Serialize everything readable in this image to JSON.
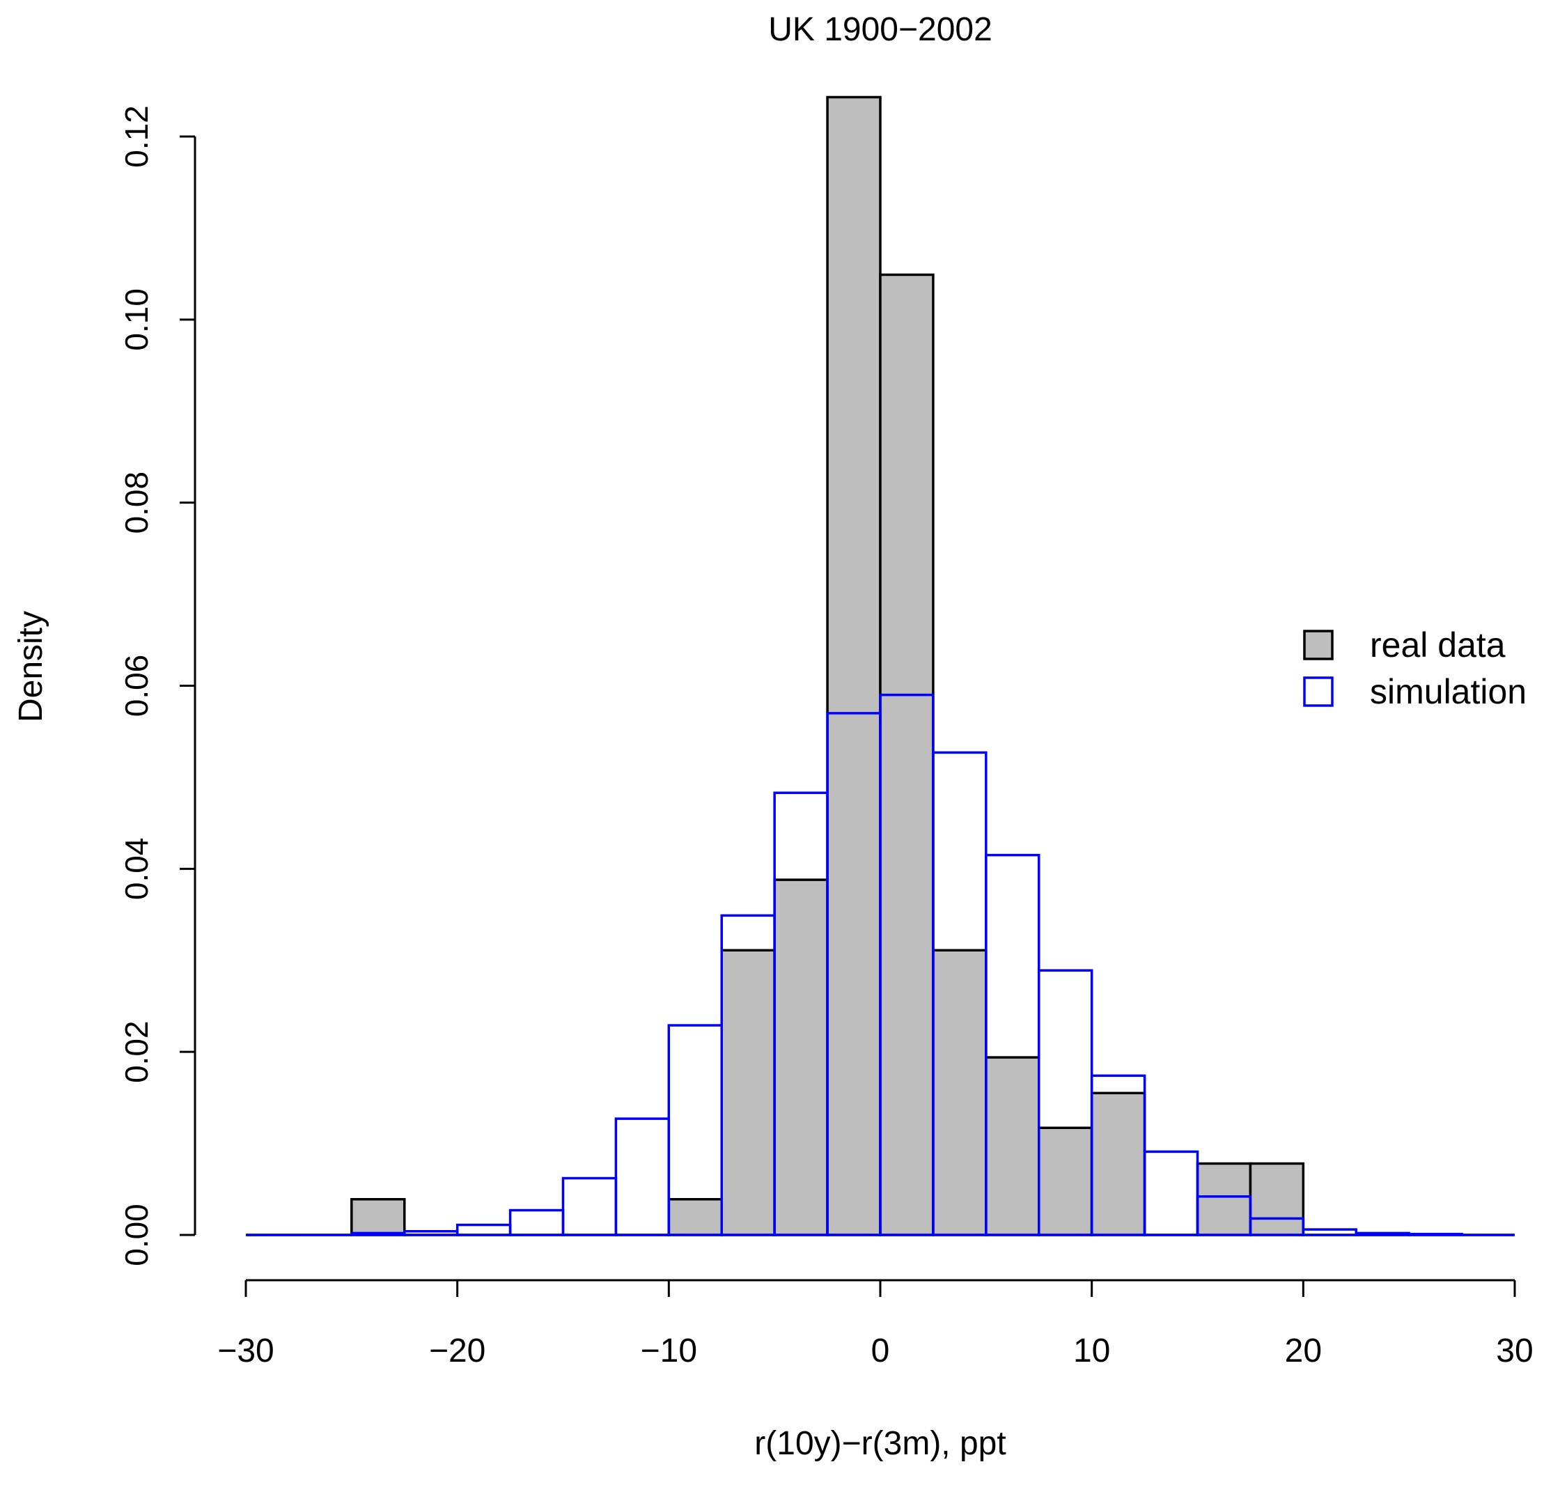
{
  "chart_data": {
    "type": "bar",
    "title": "UK 1900−2002",
    "xlabel": "r(10y)−r(3m), ppt",
    "ylabel": "Density",
    "xlim": [
      -30,
      30
    ],
    "ylim": [
      0,
      0.125
    ],
    "x_ticks": [
      -30,
      -20,
      -10,
      0,
      10,
      20,
      30
    ],
    "x_tick_labels": [
      "−30",
      "−20",
      "−10",
      "0",
      "10",
      "20",
      "30"
    ],
    "y_ticks": [
      0,
      0.02,
      0.04,
      0.06,
      0.08,
      0.1,
      0.12
    ],
    "y_tick_labels": [
      "0.00",
      "0.02",
      "0.04",
      "0.06",
      "0.08",
      "0.10",
      "0.12"
    ],
    "grid": false,
    "legend_position": "right",
    "colors": {
      "real_fill": "#bebebe",
      "real_stroke": "#000000",
      "simulation_stroke": "#0000ff"
    },
    "series": [
      {
        "name": "real data",
        "style": "filled",
        "bin_edges": [
          -30,
          -27.5,
          -25,
          -22.5,
          -20,
          -17.5,
          -15,
          -12.5,
          -10,
          -7.5,
          -5,
          -2.5,
          0,
          2.5,
          5,
          7.5,
          10,
          12.5,
          15,
          17.5,
          20,
          22.5,
          25,
          27.5,
          30
        ],
        "values": [
          0,
          0,
          0.0039,
          0,
          0,
          0,
          0,
          0,
          0.0039,
          0.0311,
          0.0388,
          0.1243,
          0.1049,
          0.0311,
          0.0194,
          0.0117,
          0.0155,
          0,
          0.0078,
          0.0078,
          0,
          0,
          0,
          0
        ]
      },
      {
        "name": "simulation",
        "style": "outline",
        "bin_edges": [
          -30,
          -27.5,
          -25,
          -22.5,
          -20,
          -17.5,
          -15,
          -12.5,
          -10,
          -7.5,
          -5,
          -2.5,
          0,
          2.5,
          5,
          7.5,
          10,
          12.5,
          15,
          17.5,
          20,
          22.5,
          25,
          27.5,
          30
        ],
        "values": [
          0,
          0,
          0.0002,
          0.0004,
          0.0011,
          0.0027,
          0.0062,
          0.0127,
          0.0229,
          0.0349,
          0.0483,
          0.057,
          0.059,
          0.0527,
          0.0415,
          0.0289,
          0.0174,
          0.0091,
          0.0042,
          0.0018,
          0.0006,
          0.0002,
          0.0001,
          0
        ]
      }
    ]
  }
}
